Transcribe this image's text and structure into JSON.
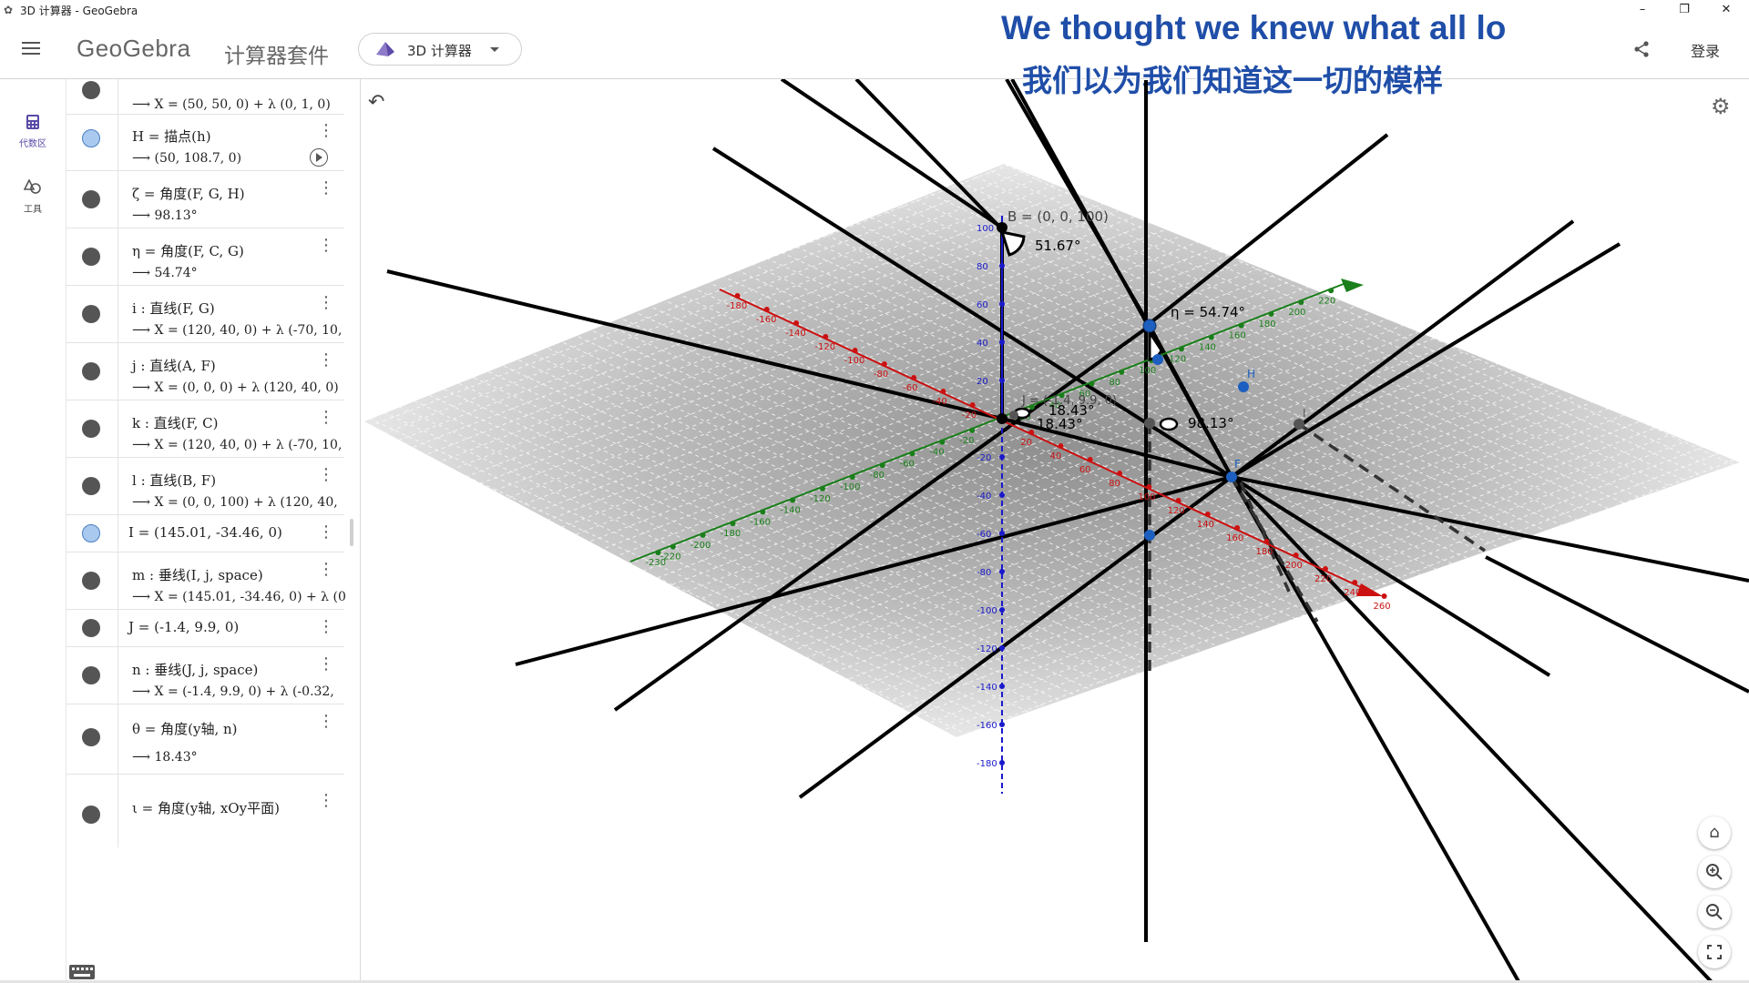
{
  "window": {
    "title": "3D 计算器 - GeoGebra",
    "minimize": "–",
    "restore": "❐",
    "close": "✕"
  },
  "header": {
    "brand": "GeoGebra",
    "suite": "计算器套件",
    "app_selector": "3D 计算器",
    "login": "登录"
  },
  "subtitles": {
    "en": "We thought we knew what all lo",
    "zh": "我们以为我们知道这一切的模样"
  },
  "sidebar": {
    "items": [
      {
        "label": "代数区",
        "icon": "calculator-icon"
      },
      {
        "label": "工具",
        "icon": "tools-icon"
      }
    ]
  },
  "algebra": {
    "rows": [
      {
        "value": "⟶ X = (50, 50, 0) + λ (0, 1, 0)",
        "dot": "gray"
      },
      {
        "def": "H = 描点(h)",
        "value": "⟶ (50, 108.7, 0)",
        "dot": "blue"
      },
      {
        "def": "ζ = 角度(F, G, H)",
        "value": "⟶ 98.13°",
        "dot": "gray"
      },
      {
        "def": "η = 角度(F, C, G)",
        "value": "⟶ 54.74°",
        "dot": "gray"
      },
      {
        "def": "i : 直线(F, G)",
        "value": "⟶ X = (120, 40, 0) + λ (-70, 10,",
        "dot": "gray"
      },
      {
        "def": "j : 直线(A, F)",
        "value": "⟶ X = (0, 0, 0) + λ (120, 40, 0)",
        "dot": "gray"
      },
      {
        "def": "k : 直线(F, C)",
        "value": "⟶ X = (120, 40, 0) + λ (-70, 10,",
        "dot": "gray"
      },
      {
        "def": "l : 直线(B, F)",
        "value": "⟶ X = (0, 0, 100) + λ (120, 40,",
        "dot": "gray"
      },
      {
        "def": "I = (145.01, -34.46, 0)",
        "dot": "blue"
      },
      {
        "def": "m : 垂线(I, j, space)",
        "value": "⟶ X = (145.01, -34.46, 0) + λ (0",
        "dot": "gray"
      },
      {
        "def": "J = (-1.4, 9.9, 0)",
        "dot": "gray"
      },
      {
        "def": "n : 垂线(J, j, space)",
        "value": "⟶ X = (-1.4, 9.9, 0) + λ (-0.32,",
        "dot": "gray"
      },
      {
        "def": "θ = 角度(y轴, n)",
        "value": "⟶ 18.43°",
        "dot": "gray"
      },
      {
        "def": "ι = 角度(y轴, xOy平面)",
        "dot": "gray"
      }
    ]
  },
  "view3d": {
    "labels": {
      "B": "B = (0, 0, 100)",
      "angle_b": "51.67°",
      "eta": "η = 54.74°",
      "zeta": "98.13°",
      "theta1": "18.43°",
      "theta2": "18.43°",
      "j_point": "J = (-1.4, 9.9, 0)",
      "H": "H",
      "F": "F",
      "I": "I"
    },
    "x_ticks": [
      "-180",
      "-160",
      "-140",
      "-120",
      "-100",
      "-80",
      "-60",
      "-40",
      "-20",
      "20",
      "40",
      "60",
      "80",
      "100",
      "120",
      "140",
      "160",
      "180",
      "200",
      "220",
      "240",
      "260"
    ],
    "y_ticks": [
      "220",
      "200",
      "180",
      "160",
      "140",
      "120",
      "100",
      "80",
      "60",
      "40",
      "20",
      "-20",
      "-40",
      "-60",
      "-80",
      "-100",
      "-120",
      "-140",
      "-160",
      "-180",
      "-200",
      "-220",
      "-230"
    ],
    "z_ticks": [
      "100",
      "80",
      "60",
      "40",
      "20",
      "-20",
      "-40",
      "-60",
      "-80",
      "-100",
      "-120",
      "-140",
      "-160",
      "-180"
    ]
  }
}
